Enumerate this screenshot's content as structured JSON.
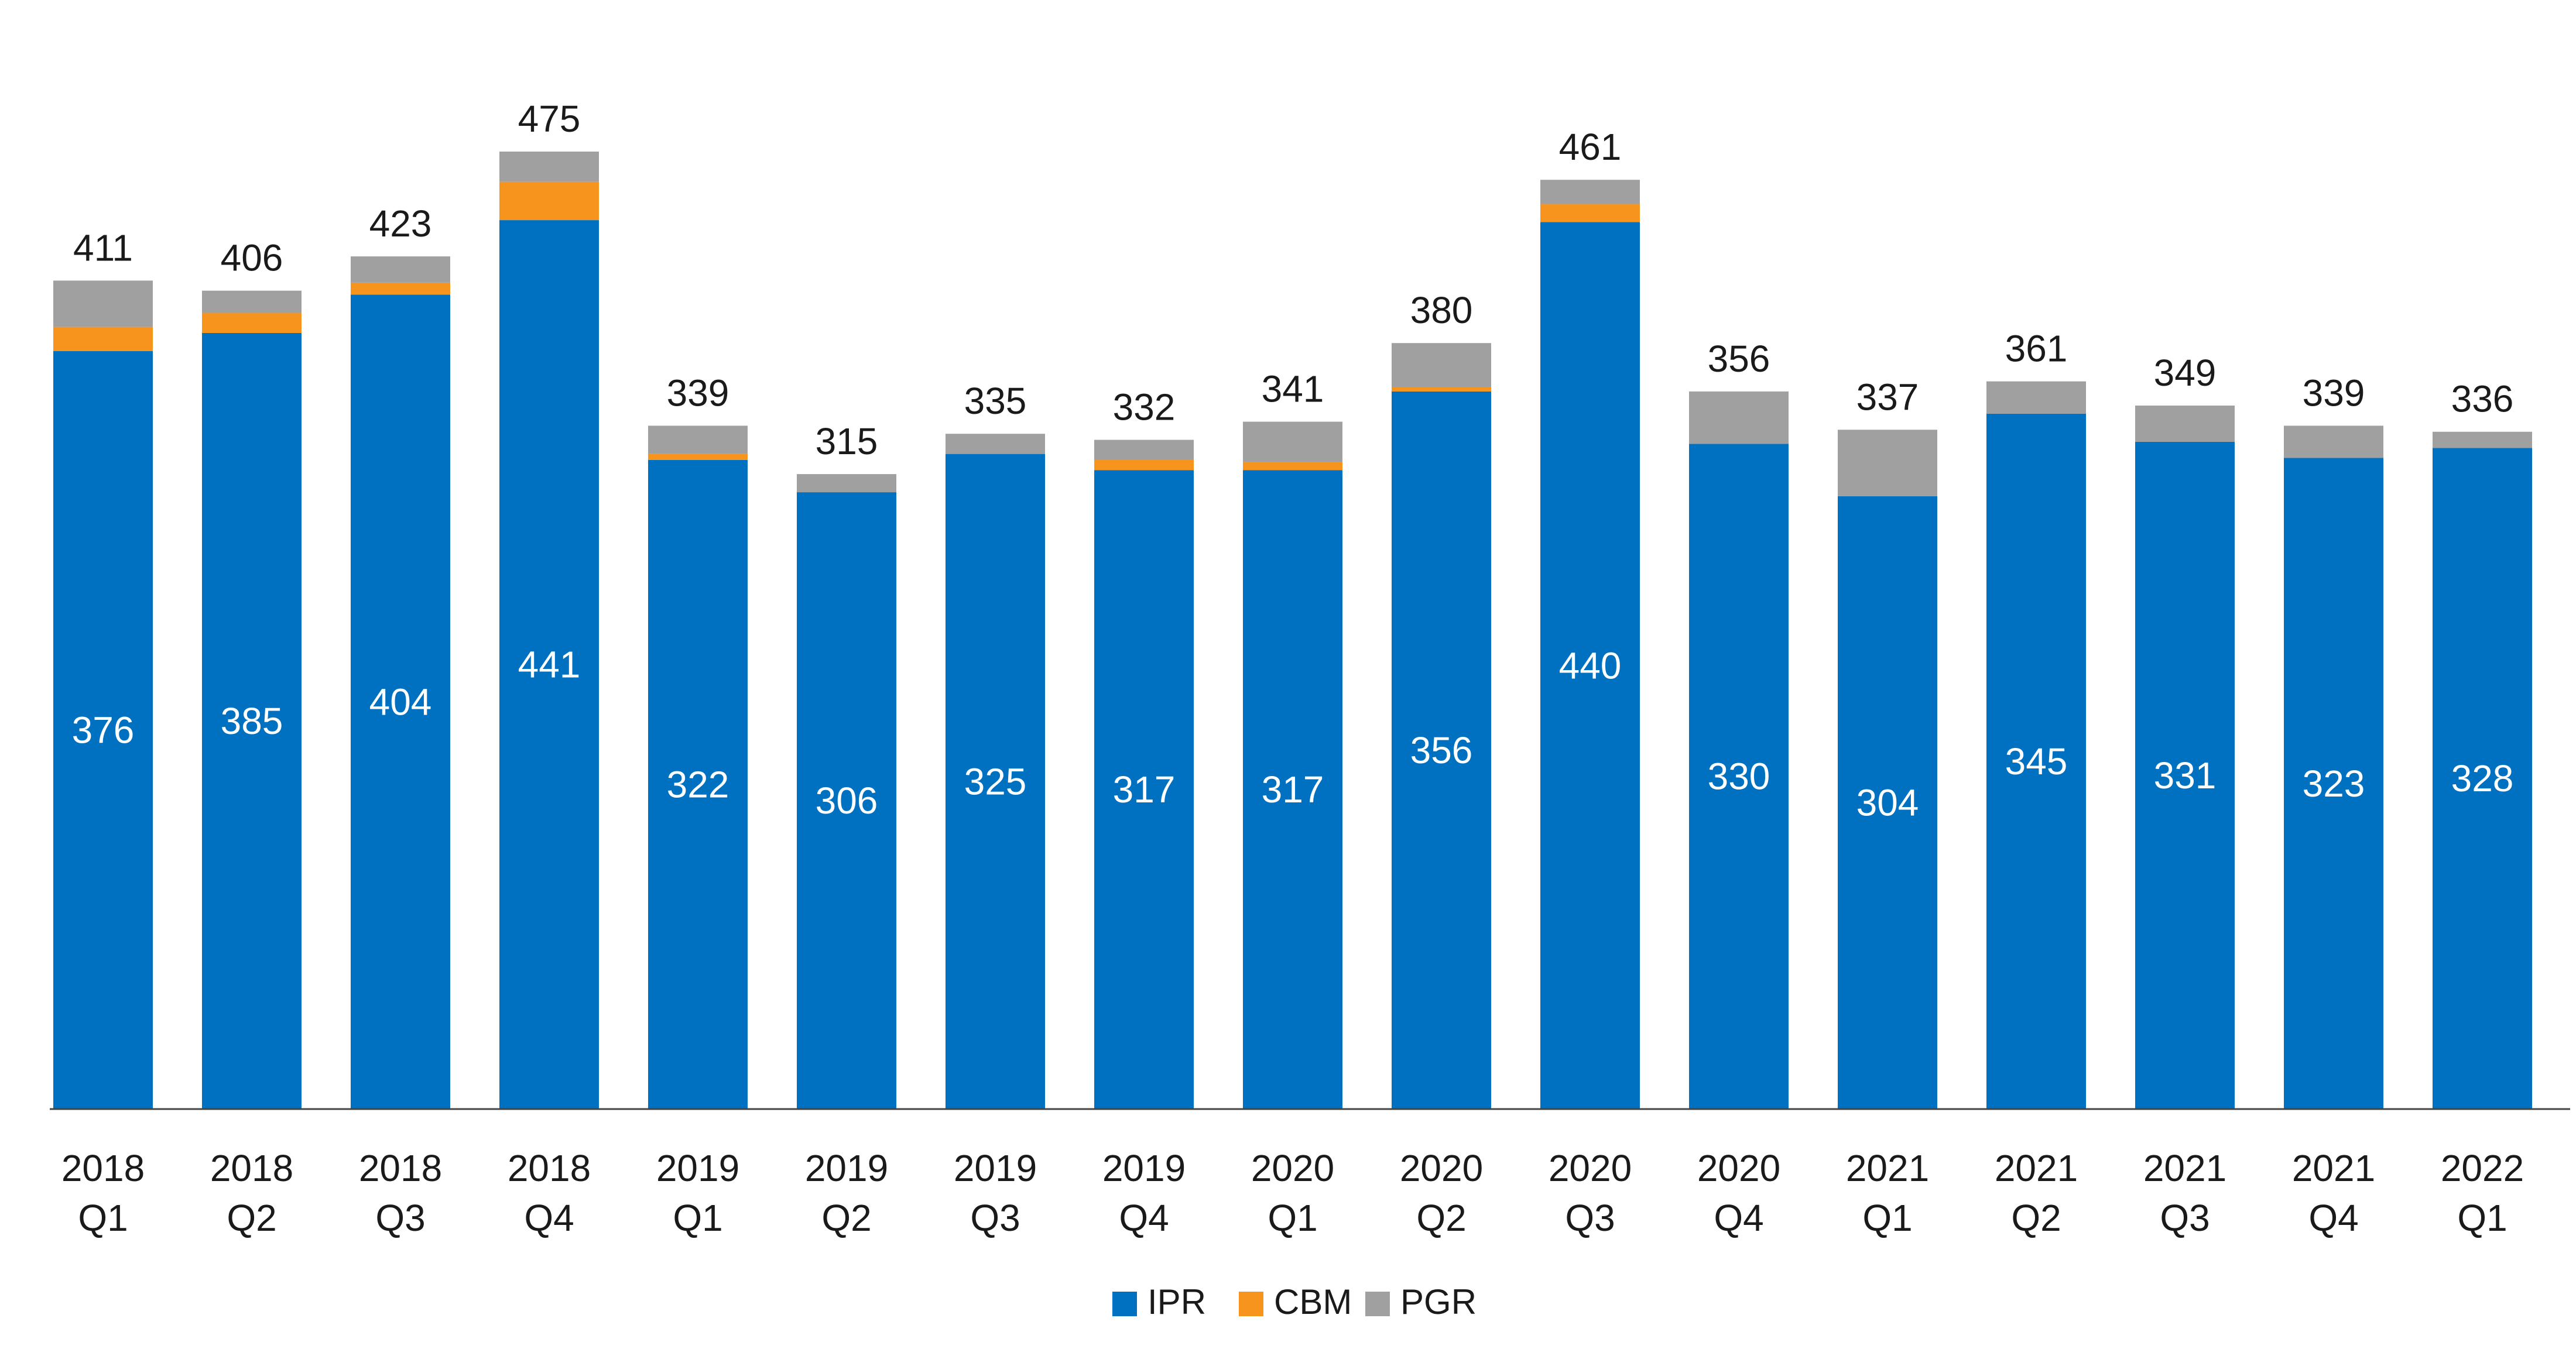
{
  "chart_data": {
    "type": "bar",
    "stacked": true,
    "categories": [
      [
        "2018",
        "Q1"
      ],
      [
        "2018",
        "Q2"
      ],
      [
        "2018",
        "Q3"
      ],
      [
        "2018",
        "Q4"
      ],
      [
        "2019",
        "Q1"
      ],
      [
        "2019",
        "Q2"
      ],
      [
        "2019",
        "Q3"
      ],
      [
        "2019",
        "Q4"
      ],
      [
        "2020",
        "Q1"
      ],
      [
        "2020",
        "Q2"
      ],
      [
        "2020",
        "Q3"
      ],
      [
        "2020",
        "Q4"
      ],
      [
        "2021",
        "Q1"
      ],
      [
        "2021",
        "Q2"
      ],
      [
        "2021",
        "Q3"
      ],
      [
        "2021",
        "Q4"
      ],
      [
        "2022",
        "Q1"
      ]
    ],
    "series": [
      {
        "name": "IPR",
        "color": "#0070C0",
        "values": [
          376,
          385,
          404,
          441,
          322,
          306,
          325,
          317,
          317,
          356,
          440,
          330,
          304,
          345,
          331,
          323,
          328
        ]
      },
      {
        "name": "CBM",
        "color": "#F7941D",
        "values": [
          12,
          10,
          6,
          19,
          3,
          0,
          0,
          5,
          4,
          2,
          9,
          0,
          0,
          0,
          0,
          0,
          0
        ]
      },
      {
        "name": "PGR",
        "color": "#A0A0A0",
        "values": [
          23,
          11,
          13,
          15,
          14,
          9,
          10,
          10,
          20,
          22,
          12,
          26,
          33,
          16,
          18,
          16,
          8
        ]
      }
    ],
    "totals": [
      411,
      406,
      423,
      475,
      339,
      315,
      335,
      332,
      341,
      380,
      461,
      356,
      337,
      361,
      349,
      339,
      336
    ],
    "ylim": [
      0,
      500
    ],
    "grid": false,
    "legend_position": "bottom-center",
    "title": "",
    "xlabel": "",
    "ylabel": ""
  }
}
